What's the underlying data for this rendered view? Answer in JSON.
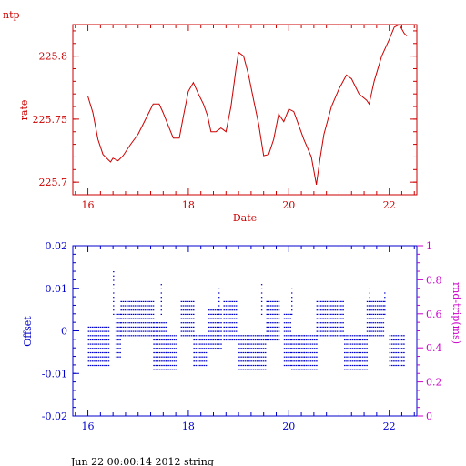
{
  "page": {
    "top_label": "ntp",
    "footer": "Jun 22 00:00:14 2012 string"
  },
  "colors": {
    "top_panel": "#cc0000",
    "bottom_panel": "#0000cc",
    "right_axis": "#cc00cc"
  },
  "chart_data": [
    {
      "type": "line",
      "xlabel": "Date",
      "ylabel": "rate",
      "xlim": [
        15.7,
        22.55
      ],
      "ylim": [
        225.69,
        225.825
      ],
      "x_ticks": [
        16,
        18,
        20,
        22
      ],
      "y_ticks": [
        225.7,
        225.75,
        225.8
      ],
      "y_tick_labels": [
        "225.7",
        "225.75",
        "225.8"
      ],
      "grid": false,
      "series": [
        {
          "points": [
            [
              16.0,
              225.768
            ],
            [
              16.1,
              225.755
            ],
            [
              16.2,
              225.734
            ],
            [
              16.3,
              225.722
            ],
            [
              16.45,
              225.716
            ],
            [
              16.5,
              225.719
            ],
            [
              16.6,
              225.717
            ],
            [
              16.7,
              225.721
            ],
            [
              16.85,
              225.73
            ],
            [
              17.0,
              225.738
            ],
            [
              17.15,
              225.75
            ],
            [
              17.3,
              225.762
            ],
            [
              17.42,
              225.762
            ],
            [
              17.5,
              225.755
            ],
            [
              17.6,
              225.745
            ],
            [
              17.7,
              225.735
            ],
            [
              17.82,
              225.735
            ],
            [
              17.9,
              225.752
            ],
            [
              18.0,
              225.772
            ],
            [
              18.1,
              225.779
            ],
            [
              18.2,
              225.77
            ],
            [
              18.3,
              225.762
            ],
            [
              18.38,
              225.753
            ],
            [
              18.45,
              225.74
            ],
            [
              18.55,
              225.74
            ],
            [
              18.65,
              225.743
            ],
            [
              18.75,
              225.74
            ],
            [
              18.85,
              225.76
            ],
            [
              18.95,
              225.79
            ],
            [
              19.0,
              225.803
            ],
            [
              19.1,
              225.8
            ],
            [
              19.2,
              225.785
            ],
            [
              19.3,
              225.765
            ],
            [
              19.4,
              225.746
            ],
            [
              19.5,
              225.721
            ],
            [
              19.6,
              225.722
            ],
            [
              19.7,
              225.734
            ],
            [
              19.8,
              225.754
            ],
            [
              19.9,
              225.748
            ],
            [
              20.0,
              225.758
            ],
            [
              20.1,
              225.756
            ],
            [
              20.2,
              225.745
            ],
            [
              20.3,
              225.734
            ],
            [
              20.45,
              225.72
            ],
            [
              20.55,
              225.698
            ],
            [
              20.62,
              225.718
            ],
            [
              20.7,
              225.738
            ],
            [
              20.85,
              225.76
            ],
            [
              21.0,
              225.774
            ],
            [
              21.15,
              225.785
            ],
            [
              21.25,
              225.782
            ],
            [
              21.4,
              225.77
            ],
            [
              21.55,
              225.765
            ],
            [
              21.6,
              225.762
            ],
            [
              21.7,
              225.78
            ],
            [
              21.85,
              225.8
            ],
            [
              22.0,
              225.813
            ],
            [
              22.1,
              225.823
            ],
            [
              22.2,
              225.825
            ],
            [
              22.3,
              225.818
            ],
            [
              22.35,
              225.816
            ]
          ]
        }
      ]
    },
    {
      "type": "scatter",
      "ylabel": "Offset",
      "y2label": "rnd-trip(ms)",
      "xlim": [
        15.7,
        22.55
      ],
      "ylim": [
        -0.02,
        0.02
      ],
      "y2lim": [
        0,
        1
      ],
      "x_ticks": [
        16,
        18,
        20,
        22
      ],
      "y_ticks": [
        -0.02,
        -0.01,
        0,
        0.01,
        0.02
      ],
      "y_tick_labels": [
        "-0.02",
        "-0.01",
        "0",
        "0.01",
        "0.02"
      ],
      "y2_ticks": [
        0,
        0.2,
        0.4,
        0.6,
        0.8,
        1
      ],
      "y2_tick_labels": [
        "0",
        "0.2",
        "0.4",
        "0.6",
        "0.8",
        "1"
      ],
      "grid": false,
      "segments": [
        {
          "x_start": 16.0,
          "x_end": 16.4,
          "y_min": -0.008,
          "y_max": 0.001
        },
        {
          "x_start": 16.55,
          "x_end": 16.65,
          "y_min": -0.006,
          "y_max": 0.004
        },
        {
          "x_start": 16.65,
          "x_end": 17.3,
          "y_min": -0.001,
          "y_max": 0.007
        },
        {
          "x_start": 17.3,
          "x_end": 17.55,
          "y_min": -0.009,
          "y_max": 0.002
        },
        {
          "x_start": 17.55,
          "x_end": 17.75,
          "y_min": -0.009,
          "y_max": -0.001
        },
        {
          "x_start": 17.85,
          "x_end": 18.1,
          "y_min": -0.001,
          "y_max": 0.007
        },
        {
          "x_start": 18.1,
          "x_end": 18.35,
          "y_min": -0.008,
          "y_max": -0.001
        },
        {
          "x_start": 18.4,
          "x_end": 18.65,
          "y_min": -0.004,
          "y_max": 0.005
        },
        {
          "x_start": 18.7,
          "x_end": 18.95,
          "y_min": -0.002,
          "y_max": 0.007
        },
        {
          "x_start": 19.0,
          "x_end": 19.55,
          "y_min": -0.009,
          "y_max": -0.001
        },
        {
          "x_start": 19.55,
          "x_end": 19.8,
          "y_min": -0.002,
          "y_max": 0.007
        },
        {
          "x_start": 19.9,
          "x_end": 20.05,
          "y_min": -0.008,
          "y_max": 0.004
        },
        {
          "x_start": 20.05,
          "x_end": 20.3,
          "y_min": -0.009,
          "y_max": -0.001
        },
        {
          "x_start": 20.3,
          "x_end": 20.55,
          "y_min": -0.009,
          "y_max": -0.001
        },
        {
          "x_start": 20.55,
          "x_end": 21.1,
          "y_min": -0.001,
          "y_max": 0.007
        },
        {
          "x_start": 21.1,
          "x_end": 21.55,
          "y_min": -0.009,
          "y_max": -0.001
        },
        {
          "x_start": 21.55,
          "x_end": 21.9,
          "y_min": -0.001,
          "y_max": 0.007
        },
        {
          "x_start": 22.0,
          "x_end": 22.3,
          "y_min": -0.008,
          "y_max": -0.001
        }
      ],
      "outliers": [
        {
          "x": 16.5,
          "y": 0.014
        },
        {
          "x": 17.45,
          "y": 0.011
        },
        {
          "x": 18.6,
          "y": 0.01
        },
        {
          "x": 19.45,
          "y": 0.011
        },
        {
          "x": 20.05,
          "y": 0.01
        },
        {
          "x": 21.6,
          "y": 0.01
        },
        {
          "x": 21.9,
          "y": 0.009
        }
      ]
    }
  ]
}
